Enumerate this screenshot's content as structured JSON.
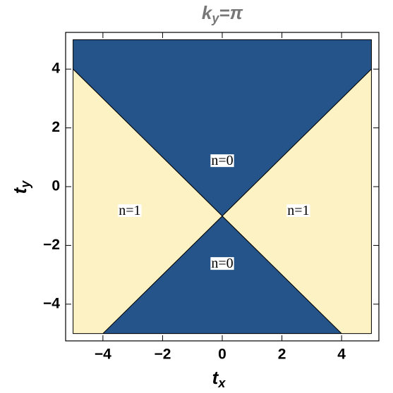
{
  "chart_data": {
    "type": "region",
    "title": {
      "base": "k",
      "sub": "y",
      "rest": "=π"
    },
    "x_label": {
      "base": "t",
      "sub": "x"
    },
    "y_label": {
      "base": "t",
      "sub": "y"
    },
    "xlim": [
      -5.25,
      5.25
    ],
    "ylim": [
      -5.25,
      5.25
    ],
    "xticks": [
      {
        "value": -4,
        "label": "−4"
      },
      {
        "value": -2,
        "label": "−2"
      },
      0,
      2,
      4
    ],
    "yticks": [
      {
        "value": -4,
        "label": "−4"
      },
      {
        "value": -2,
        "label": "−2"
      },
      0,
      2,
      4
    ],
    "regions": [
      {
        "label": "n=0",
        "color": "#25548a",
        "x": [
          -5,
          0,
          5,
          5,
          -5
        ],
        "y": [
          4,
          -1,
          4,
          5,
          5
        ],
        "label_x": 0,
        "label_y": 0.85
      },
      {
        "label": "n=0",
        "color": "#25548a",
        "x": [
          -4,
          0,
          4
        ],
        "y": [
          -5,
          -1,
          -5
        ],
        "label_x": 0,
        "label_y": -2.65
      },
      {
        "label": "n=1",
        "color": "#fdf2c4",
        "x": [
          -5,
          0,
          -4,
          -5
        ],
        "y": [
          4,
          -1,
          -5,
          -5
        ],
        "label_x": -3.1,
        "label_y": -0.85
      },
      {
        "label": "n=1",
        "color": "#fdf2c4",
        "x": [
          5,
          0,
          4,
          5
        ],
        "y": [
          4,
          -1,
          -5,
          -5
        ],
        "label_x": 2.55,
        "label_y": -0.85
      }
    ]
  }
}
